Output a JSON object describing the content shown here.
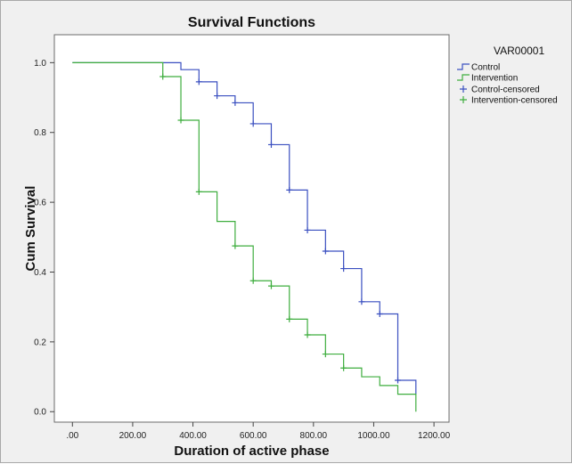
{
  "chart_data": {
    "type": "line",
    "title": "Survival Functions",
    "xlabel": "Duration of active phase",
    "ylabel": "Cum Survival",
    "xlim": [
      -60,
      1250
    ],
    "ylim": [
      -0.03,
      1.08
    ],
    "xticks": [
      0,
      200,
      400,
      600,
      800,
      1000,
      1200
    ],
    "xtick_labels": [
      ".00",
      "200.00",
      "400.00",
      "600.00",
      "800.00",
      "1000.00",
      "1200.00"
    ],
    "yticks": [
      0,
      0.2,
      0.4,
      0.6,
      0.8,
      1.0
    ],
    "ytick_labels": [
      "0.0",
      "0.2",
      "0.4",
      "0.6",
      "0.8",
      "1.0"
    ],
    "legend": {
      "title": "VAR00001",
      "position": "right-outside",
      "entries": [
        "Control",
        "Intervention",
        "Control-censored",
        "Intervention-censored"
      ]
    },
    "series": [
      {
        "name": "Control",
        "color": "#3a4fc0",
        "steps": [
          [
            0,
            1.0
          ],
          [
            360,
            0.98
          ],
          [
            420,
            0.945
          ],
          [
            480,
            0.905
          ],
          [
            540,
            0.885
          ],
          [
            600,
            0.825
          ],
          [
            660,
            0.765
          ],
          [
            720,
            0.635
          ],
          [
            780,
            0.52
          ],
          [
            840,
            0.46
          ],
          [
            900,
            0.41
          ],
          [
            960,
            0.315
          ],
          [
            1020,
            0.28
          ],
          [
            1080,
            0.09
          ],
          [
            1140,
            0.05
          ]
        ],
        "censored": [
          [
            420,
            0.945
          ],
          [
            480,
            0.905
          ],
          [
            540,
            0.885
          ],
          [
            600,
            0.825
          ],
          [
            660,
            0.765
          ],
          [
            720,
            0.635
          ],
          [
            780,
            0.52
          ],
          [
            840,
            0.46
          ],
          [
            900,
            0.41
          ],
          [
            960,
            0.315
          ],
          [
            1020,
            0.28
          ],
          [
            1080,
            0.09
          ]
        ]
      },
      {
        "name": "Intervention",
        "color": "#3fae3f",
        "steps": [
          [
            0,
            1.0
          ],
          [
            300,
            0.96
          ],
          [
            360,
            0.835
          ],
          [
            420,
            0.63
          ],
          [
            480,
            0.545
          ],
          [
            540,
            0.475
          ],
          [
            600,
            0.375
          ],
          [
            660,
            0.36
          ],
          [
            720,
            0.265
          ],
          [
            780,
            0.22
          ],
          [
            840,
            0.165
          ],
          [
            900,
            0.125
          ],
          [
            960,
            0.1
          ],
          [
            1020,
            0.075
          ],
          [
            1080,
            0.05
          ],
          [
            1140,
            0.0
          ]
        ],
        "censored": [
          [
            300,
            0.96
          ],
          [
            360,
            0.835
          ],
          [
            420,
            0.63
          ],
          [
            540,
            0.475
          ],
          [
            600,
            0.375
          ],
          [
            660,
            0.36
          ],
          [
            720,
            0.265
          ],
          [
            780,
            0.22
          ],
          [
            840,
            0.165
          ],
          [
            900,
            0.125
          ]
        ]
      }
    ]
  }
}
